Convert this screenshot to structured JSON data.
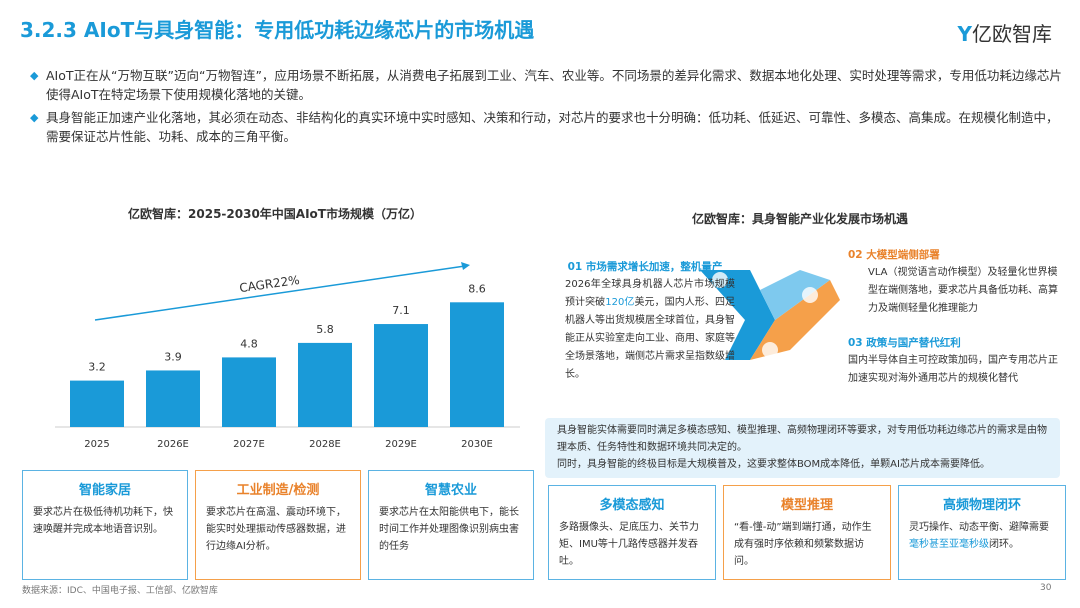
{
  "header": {
    "title": "3.2.3 AIoT与具身智能：专用低功耗边缘芯片的市场机遇",
    "logo": "亿欧智库"
  },
  "bullets": [
    "AIoT正在从“万物互联”迈向“万物智连”，应用场景不断拓展，从消费电子拓展到工业、汽车、农业等。不同场景的差异化需求、数据本地化处理、实时处理等需求，专用低功耗边缘芯片使得AIoT在特定场景下使用规模化落地的关键。",
    "具身智能正加速产业化落地，其必须在动态、非结构化的真实环境中实时感知、决策和行动，对芯片的要求也十分明确：低功耗、低延迟、可靠性、多模态、高集成。在规模化制造中，需要保证芯片性能、功耗、成本的三角平衡。"
  ],
  "chart_data": {
    "type": "bar",
    "title": "亿欧智库：2025-2030年中国AIoT市场规模（万亿）",
    "categories": [
      "2025",
      "2026E",
      "2027E",
      "2028E",
      "2029E",
      "2030E"
    ],
    "values": [
      3.2,
      3.9,
      4.8,
      5.8,
      7.1,
      8.6
    ],
    "color": "#1a9ad8",
    "annotation": "CAGR22%"
  },
  "left_cards": [
    {
      "title": "智能家居",
      "text": "要求芯片在极低待机功耗下，快速唤醒并完成本地语音识别。"
    },
    {
      "title": "工业制造/检测",
      "text": "要求芯片在高温、震动环境下，能实时处理振动传感器数据，进行边缘AI分析。"
    },
    {
      "title": "智慧农业",
      "text": "要求芯片在太阳能供电下，能长时间工作并处理图像识别病虫害的任务"
    }
  ],
  "right_panel": {
    "title": "亿欧智库：具身智能产业化发展市场机遇",
    "items": [
      {
        "title": "01 市场需求增长加速，整机量产",
        "text": [
          "2026年全球具身机器人芯片市场规模预计突破",
          "120亿",
          "美元，国内人形、四足机器人等出货规模居全球首位，具身智能正从实验室走向工业、商用、家庭等全场景落地，端侧芯片需求呈指数级增长。"
        ]
      },
      {
        "title": "02 大模型端侧部署",
        "text": [
          "VLA（视觉语言动作模型）及轻量化世界模型在端侧落地，要求芯片具备低功耗、高算力及端侧轻量化推理能力"
        ]
      },
      {
        "title": "03 政策与国产替代红利",
        "text": [
          "国内半导体自主可控政策加码，国产专用芯片正加速实现对海外通用芯片的规模化替代"
        ]
      }
    ],
    "summary": [
      "具身智能实体需要同时满足多模态感知、模型推理、高频物理闭环等要求，对专用低功耗边缘芯片的需求是由物理本质、任务特性和数据环境共同决定的。",
      "同时，具身智能的终极目标是大规模普及，这要求整体BOM成本降低，单颗AI芯片成本需要降低。"
    ],
    "cards": [
      {
        "title": "多模态感知",
        "text": [
          "多路摄像头、足底压力、关节力矩、IMU等十几路传感器并发吞吐。"
        ]
      },
      {
        "title": "模型推理",
        "text": [
          "“看-懂-动”端到端打通，动作生成有强时序依赖和频繁数据访问。"
        ]
      },
      {
        "title": "高频物理闭环",
        "text": [
          "灵巧操作、动态平衡、避障需要",
          "毫秒甚至亚毫秒级",
          "闭环。"
        ]
      }
    ]
  },
  "footer": {
    "source": "数据来源：IDC、中国电子报、工信部、亿欧智库",
    "page": "30"
  }
}
